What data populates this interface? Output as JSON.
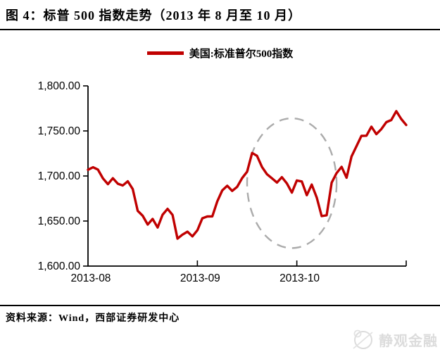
{
  "title": "图 4：标普 500 指数走势（2013 年 8 月至 10 月）",
  "legend": {
    "label": "美国:标准普尔500指数"
  },
  "source_note": "资料来源：Wind，西部证券研发中心",
  "watermark": {
    "text": "静观金融"
  },
  "colors": {
    "series": "#C00000",
    "axis": "#000000",
    "annotation": "#ABABAB",
    "watermark": "#dcdcdc"
  },
  "chart_data": {
    "type": "line",
    "title": "标普 500 指数走势（2013 年 8 月至 10 月）",
    "xlabel": "",
    "ylabel": "",
    "ylim": [
      1600,
      1800
    ],
    "grid": false,
    "legend_position": "top-center",
    "y_ticks": [
      1600,
      1650,
      1700,
      1750,
      1800
    ],
    "y_tick_labels": [
      "1,600.00",
      "1,650.00",
      "1,700.00",
      "1,750.00",
      "1,800.00"
    ],
    "x_ticks": [
      {
        "index": 0,
        "label": "2013-08"
      },
      {
        "index": 22,
        "label": "2013-09"
      },
      {
        "index": 42,
        "label": "2013-10"
      },
      {
        "index": 64,
        "label": ""
      }
    ],
    "series": [
      {
        "name": "美国:标准普尔500指数",
        "color": "#C00000",
        "dates": [
          "08-01",
          "08-02",
          "08-05",
          "08-06",
          "08-07",
          "08-08",
          "08-09",
          "08-12",
          "08-13",
          "08-14",
          "08-15",
          "08-16",
          "08-19",
          "08-20",
          "08-21",
          "08-22",
          "08-23",
          "08-26",
          "08-27",
          "08-28",
          "08-29",
          "08-30",
          "09-03",
          "09-04",
          "09-05",
          "09-06",
          "09-09",
          "09-10",
          "09-11",
          "09-12",
          "09-13",
          "09-16",
          "09-17",
          "09-18",
          "09-19",
          "09-20",
          "09-23",
          "09-24",
          "09-25",
          "09-26",
          "09-27",
          "09-30",
          "10-01",
          "10-02",
          "10-03",
          "10-04",
          "10-07",
          "10-08",
          "10-09",
          "10-10",
          "10-11",
          "10-14",
          "10-15",
          "10-16",
          "10-17",
          "10-18",
          "10-21",
          "10-22",
          "10-23",
          "10-24",
          "10-25",
          "10-28",
          "10-29",
          "10-30",
          "10-31"
        ],
        "values": [
          1706.87,
          1709.67,
          1707.14,
          1697.37,
          1690.91,
          1697.48,
          1691.42,
          1689.47,
          1694.16,
          1685.39,
          1661.32,
          1655.83,
          1646.06,
          1652.35,
          1642.8,
          1656.96,
          1663.5,
          1656.78,
          1630.48,
          1634.96,
          1638.17,
          1632.97,
          1639.77,
          1653.08,
          1655.08,
          1655.17,
          1671.71,
          1683.99,
          1689.13,
          1683.42,
          1687.99,
          1697.6,
          1704.76,
          1725.52,
          1722.34,
          1709.91,
          1701.84,
          1697.42,
          1692.77,
          1698.67,
          1691.75,
          1681.55,
          1695.0,
          1693.87,
          1678.66,
          1690.5,
          1676.12,
          1655.45,
          1656.4,
          1692.56,
          1703.2,
          1710.14,
          1698.06,
          1721.54,
          1733.15,
          1744.5,
          1744.66,
          1754.67,
          1746.38,
          1752.07,
          1759.77,
          1762.11,
          1771.95,
          1763.31,
          1756.54
        ]
      }
    ],
    "annotation": {
      "shape": "ellipse",
      "line_style": "dashed",
      "color": "#ABABAB",
      "x_index_range": [
        32,
        50
      ],
      "value_range": [
        1620,
        1764
      ]
    }
  }
}
